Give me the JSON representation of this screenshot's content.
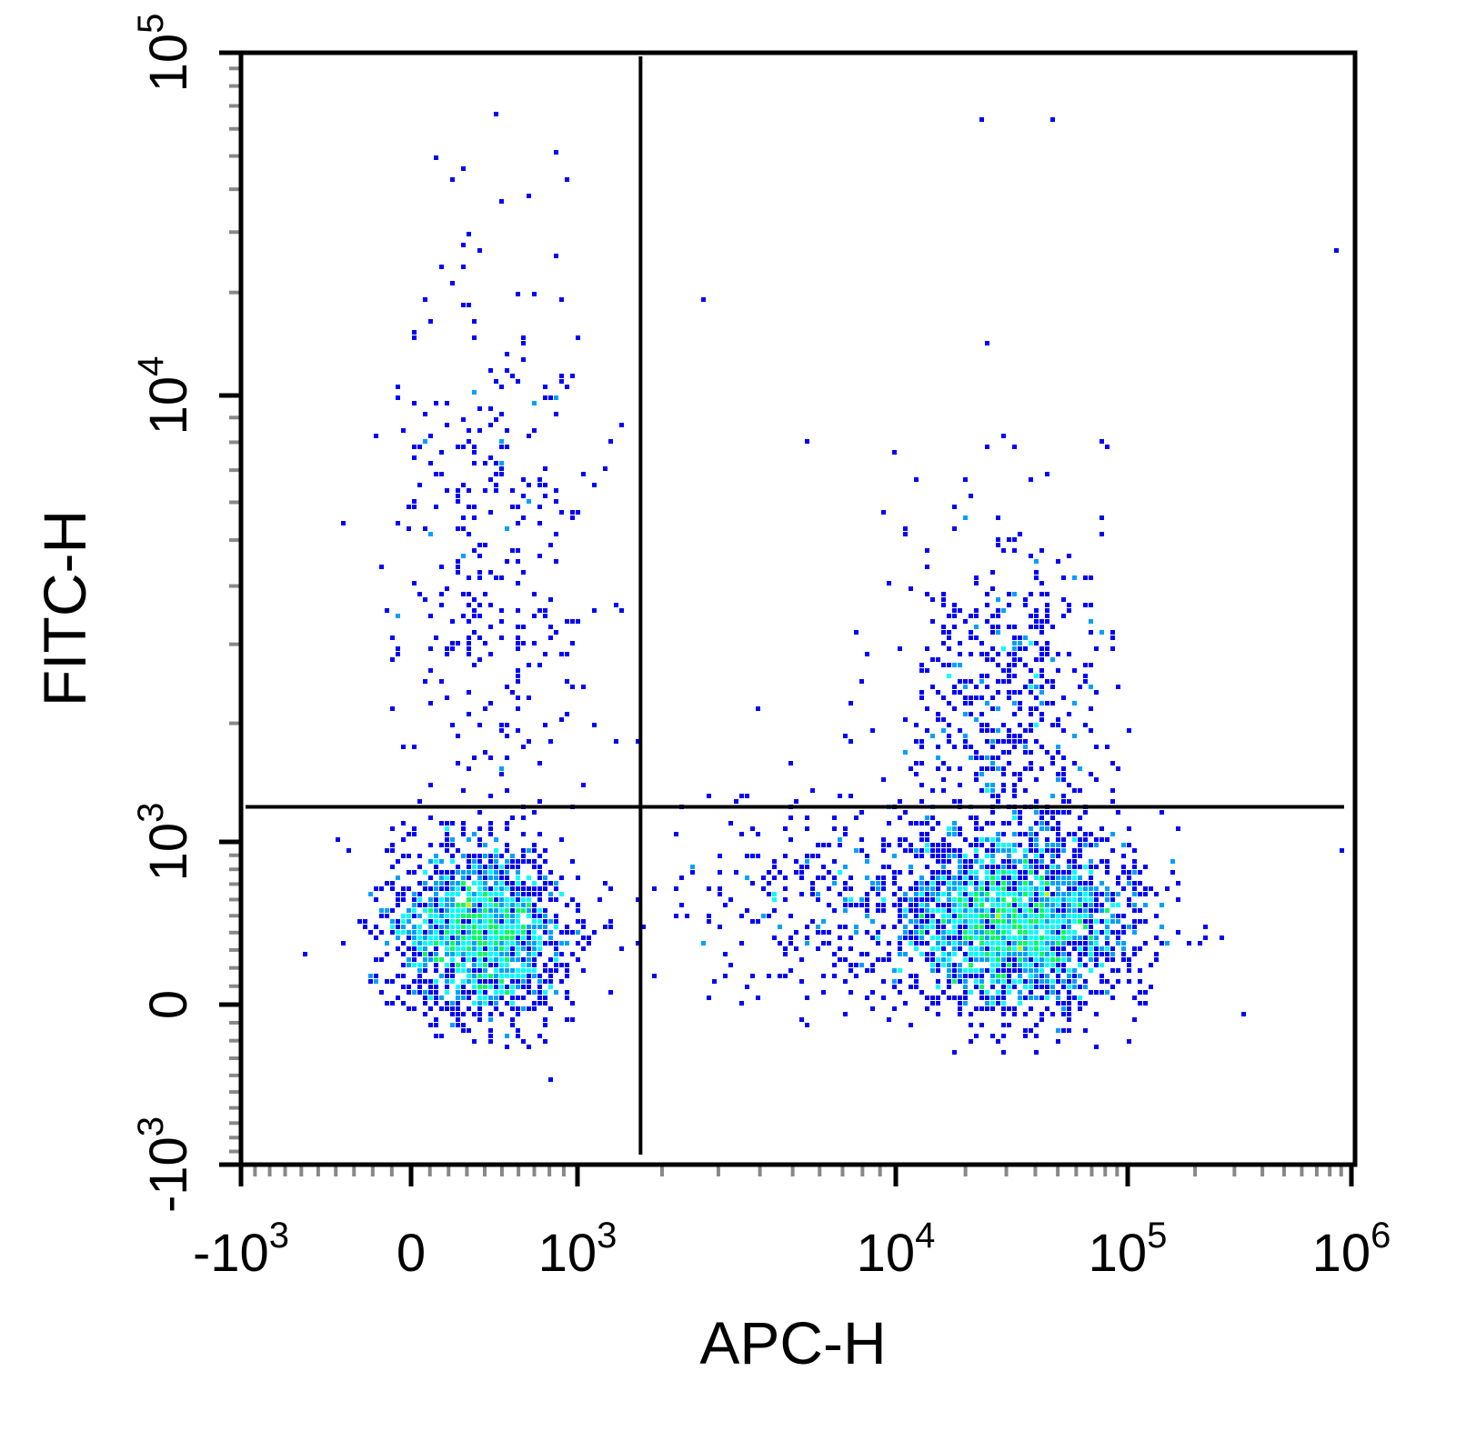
{
  "chart_data": {
    "type": "scatter",
    "subtype": "flow-cytometry-density-dot-plot",
    "xlabel": "APC-H",
    "ylabel": "FITC-H",
    "x_scale": "biexponential",
    "y_scale": "biexponential",
    "xlim": [
      -1000,
      1000000
    ],
    "ylim": [
      -1000,
      100000
    ],
    "x_ticks": [
      {
        "value": -1000,
        "base": "-10",
        "exp": "3"
      },
      {
        "value": 0,
        "base": "0",
        "exp": ""
      },
      {
        "value": 1000,
        "base": "10",
        "exp": "3"
      },
      {
        "value": 10000,
        "base": "10",
        "exp": "4"
      },
      {
        "value": 100000,
        "base": "10",
        "exp": "5"
      },
      {
        "value": 1000000,
        "base": "10",
        "exp": "6"
      }
    ],
    "y_ticks": [
      {
        "value": -1000,
        "base": "-10",
        "exp": "3"
      },
      {
        "value": 0,
        "base": "0",
        "exp": ""
      },
      {
        "value": 1000,
        "base": "10",
        "exp": "3"
      },
      {
        "value": 10000,
        "base": "10",
        "exp": "4"
      },
      {
        "value": 100000,
        "base": "10",
        "exp": "5"
      }
    ],
    "gates": {
      "x_threshold": 1700,
      "y_threshold": 1250
    },
    "density_colors": [
      "#0000ff",
      "#00a0ff",
      "#00ffff",
      "#00ff60",
      "#b0ff00",
      "#ffff00",
      "#ff9000",
      "#ff0000"
    ],
    "populations": [
      {
        "x_center": 380,
        "y_center": 400,
        "count": 1700,
        "peak_density": 0.42
      },
      {
        "x_center": 450,
        "y_center": 4500,
        "count": 330,
        "peak_density": 0.1
      },
      {
        "x_center": 32000,
        "y_center": 470,
        "count": 2400,
        "peak_density": 1.0
      },
      {
        "x_center": 30000,
        "y_center": 2200,
        "count": 550,
        "peak_density": 0.22
      },
      {
        "x_center": 5500,
        "y_center": 600,
        "count": 240,
        "peak_density": 0.06
      }
    ],
    "grid": false,
    "legend": "none"
  }
}
